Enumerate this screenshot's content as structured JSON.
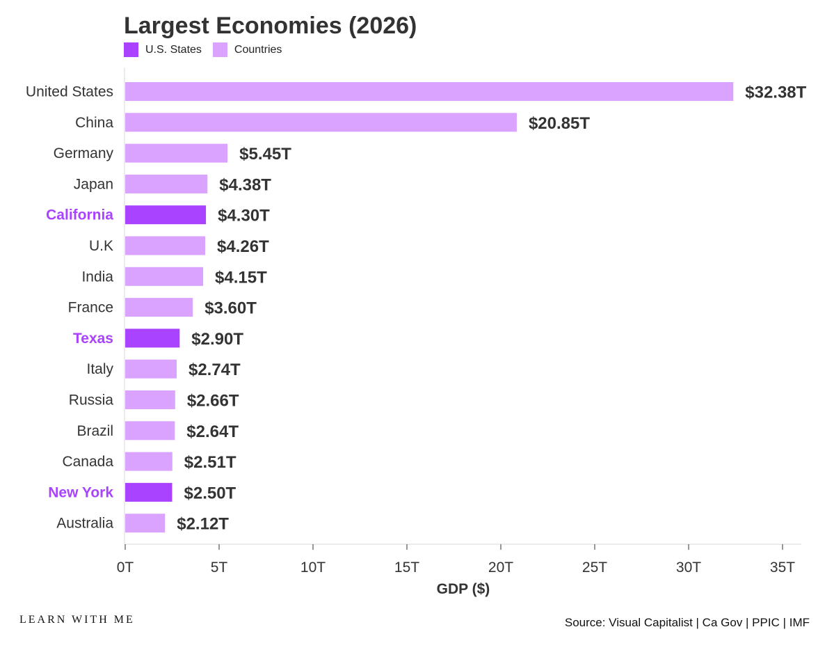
{
  "chart_data": {
    "type": "bar",
    "orientation": "horizontal",
    "title": "Largest Economies (2026)",
    "xlabel": "GDP ($)",
    "ylabel": "",
    "xlim": [
      0,
      36
    ],
    "xticks": [
      0,
      5,
      10,
      15,
      20,
      25,
      30,
      35
    ],
    "xtick_labels": [
      "0T",
      "5T",
      "10T",
      "15T",
      "20T",
      "25T",
      "30T",
      "35T"
    ],
    "grid": false,
    "legend": {
      "position": "top-left",
      "entries": [
        {
          "label": "U.S. States",
          "color": "#a943ff"
        },
        {
          "label": "Countries",
          "color": "#d9a3ff"
        }
      ]
    },
    "colors": {
      "state": "#a943ff",
      "country": "#d9a3ff",
      "state_label": "#a943ff"
    },
    "categories": [
      "United States",
      "China",
      "Germany",
      "Japan",
      "California",
      "U.K",
      "India",
      "France",
      "Texas",
      "Italy",
      "Russia",
      "Brazil",
      "Canada",
      "New York",
      "Australia"
    ],
    "values": [
      32.38,
      20.85,
      5.45,
      4.38,
      4.3,
      4.26,
      4.15,
      3.6,
      2.9,
      2.74,
      2.66,
      2.64,
      2.51,
      2.5,
      2.12
    ],
    "value_labels": [
      "$32.38T",
      "$20.85T",
      "$5.45T",
      "$4.38T",
      "$4.30T",
      "$4.26T",
      "$4.15T",
      "$3.60T",
      "$2.90T",
      "$2.74T",
      "$2.66T",
      "$2.64T",
      "$2.51T",
      "$2.50T",
      "$2.12T"
    ],
    "groups": [
      "Countries",
      "Countries",
      "Countries",
      "Countries",
      "U.S. States",
      "Countries",
      "Countries",
      "Countries",
      "U.S. States",
      "Countries",
      "Countries",
      "Countries",
      "Countries",
      "U.S. States",
      "Countries"
    ]
  },
  "footer": {
    "brand": "LEARN WITH ME",
    "source": "Source: Visual Capitalist | Ca Gov | PPIC | IMF"
  }
}
